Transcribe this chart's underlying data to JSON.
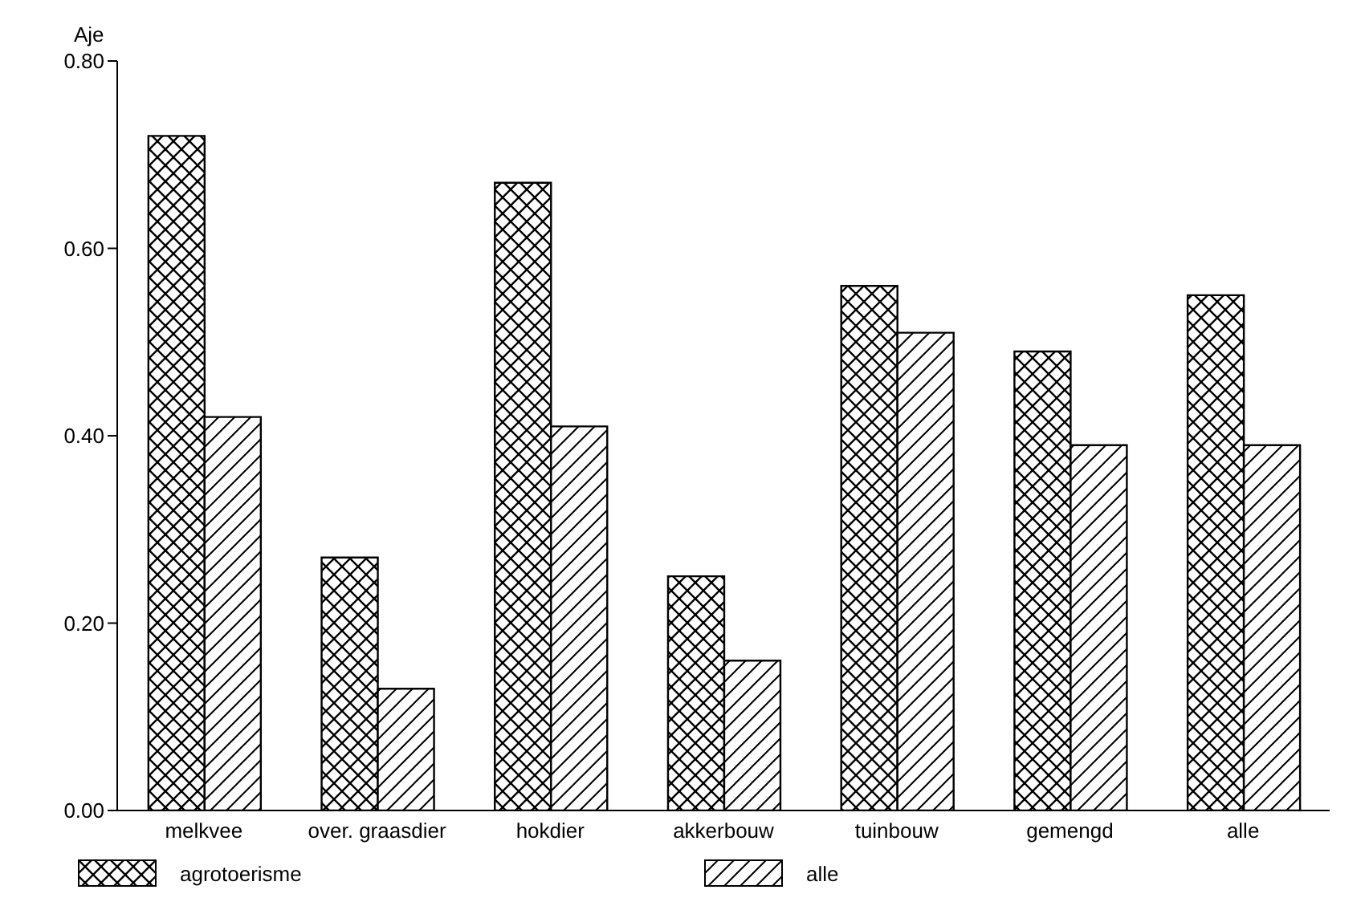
{
  "chart_data": {
    "type": "bar",
    "ylabel": "Aje",
    "categories": [
      "melkvee",
      "over. graasdier",
      "hokdier",
      "akkerbouw",
      "tuinbouw",
      "gemengd",
      "alle"
    ],
    "series": [
      {
        "name": "agrotoerisme",
        "color": "#000000",
        "values": [
          0.72,
          0.27,
          0.67,
          0.25,
          0.56,
          0.49,
          0.55
        ]
      },
      {
        "name": "alle",
        "color": "#000000",
        "values": [
          0.42,
          0.13,
          0.41,
          0.16,
          0.51,
          0.39,
          0.39
        ]
      }
    ],
    "ylim": [
      0,
      0.8
    ],
    "yticks": [
      {
        "value": 0,
        "label": "0.00"
      },
      {
        "value": 0.2,
        "label": "0.20"
      },
      {
        "value": 0.4,
        "label": "0.40"
      },
      {
        "value": 0.6,
        "label": "0.60"
      },
      {
        "value": 0.8,
        "label": "0.80"
      }
    ],
    "grid": false,
    "legend": "bottom"
  }
}
